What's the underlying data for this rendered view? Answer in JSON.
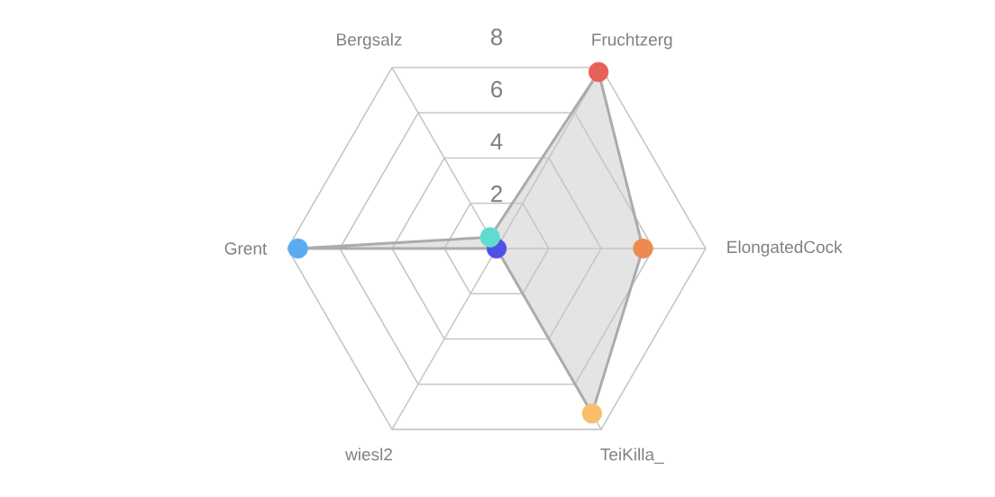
{
  "chart_data": {
    "type": "radar",
    "categories": [
      "Fruchtzerg",
      "ElongatedCock",
      "TeiKilla_",
      "wiesl2",
      "Grent",
      "Bergsalz"
    ],
    "series": [
      {
        "color": "#e4e4e4",
        "colors": [
          "#e8605a",
          "#ec8a52",
          "#f8bf6a",
          "#5050e6",
          "#5aacf0",
          "#5fdcd0"
        ],
        "values": [
          7.8,
          5.6,
          7.3,
          0,
          7.6,
          0.5
        ]
      }
    ],
    "ylim": [
      0,
      8
    ],
    "yticks": [
      2,
      4,
      6,
      8
    ],
    "grid": true,
    "marker": "circle"
  }
}
